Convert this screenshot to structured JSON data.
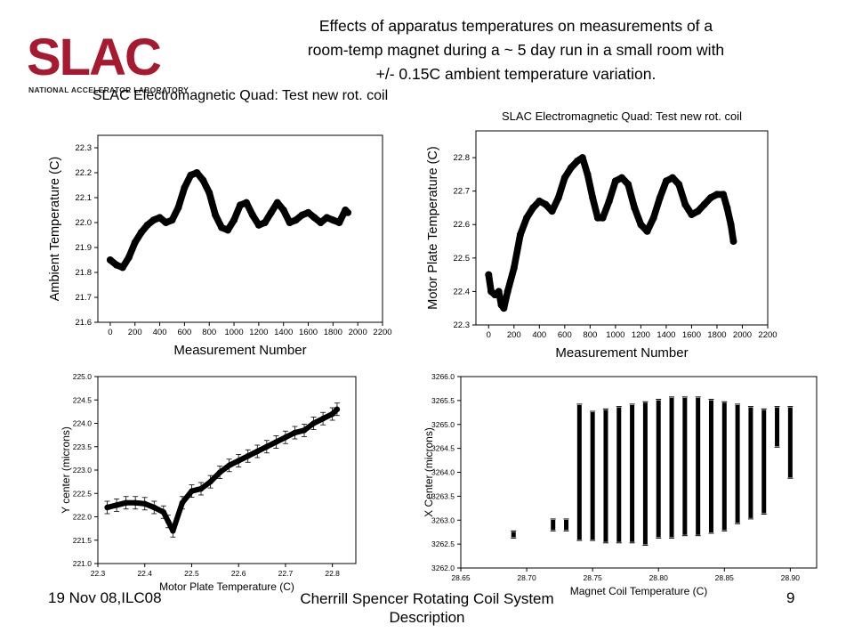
{
  "slide": {
    "title_lines": [
      "Effects of apparatus temperatures on measurements of a",
      "room-temp magnet during a ~ 5 day run in a small room with",
      "+/-  0.15C ambient temperature variation."
    ],
    "logo_text": "SLAC",
    "logo_subtext": "NATIONAL ACCELERATOR LABORATORY",
    "colors": {
      "logo": "#a6192e",
      "marker": "#000000"
    }
  },
  "footer": {
    "left": "19 Nov 08,ILC08",
    "center": "Cherrill Spencer Rotating Coil System Description",
    "right": "9"
  },
  "chart_data": [
    {
      "type": "scatter",
      "title": "SLAC  Electromagnetic Quad: Test new rot. coil",
      "xlabel": "Measurement Number",
      "ylabel": "Ambient Temperature (C)",
      "xlim": [
        -100,
        2200
      ],
      "ylim": [
        21.6,
        22.35
      ],
      "xticks": [
        0,
        200,
        400,
        600,
        800,
        1000,
        1200,
        1400,
        1600,
        1800,
        2000,
        2200
      ],
      "yticks": [
        21.6,
        21.7,
        21.8,
        21.9,
        22.0,
        22.1,
        22.2,
        22.3
      ],
      "tick_decimals": 1,
      "series": [
        {
          "x": [
            0,
            50,
            100,
            150,
            200,
            250,
            300,
            350,
            400,
            450,
            500,
            550,
            600,
            650,
            700,
            750,
            800,
            850,
            900,
            950,
            1000,
            1050,
            1100,
            1150,
            1200,
            1250,
            1300,
            1350,
            1400,
            1450,
            1500,
            1550,
            1600,
            1650,
            1700,
            1750,
            1800,
            1850,
            1900,
            1920
          ],
          "y": [
            21.85,
            21.83,
            21.82,
            21.86,
            21.92,
            21.96,
            21.99,
            22.01,
            22.02,
            22.0,
            22.01,
            22.06,
            22.14,
            22.19,
            22.2,
            22.17,
            22.12,
            22.03,
            21.98,
            21.97,
            22.01,
            22.07,
            22.08,
            22.03,
            21.99,
            22.0,
            22.04,
            22.08,
            22.05,
            22.0,
            22.01,
            22.03,
            22.04,
            22.02,
            22.0,
            22.02,
            22.01,
            22.0,
            22.05,
            22.04
          ]
        }
      ]
    },
    {
      "type": "scatter",
      "title": "SLAC  Electromagnetic Quad: Test new rot. coil",
      "xlabel": "Measurement Number",
      "ylabel": "Motor Plate Temperature (C)",
      "xlim": [
        -100,
        2200
      ],
      "ylim": [
        22.3,
        22.88
      ],
      "xticks": [
        0,
        200,
        400,
        600,
        800,
        1000,
        1200,
        1400,
        1600,
        1800,
        2000,
        2200
      ],
      "yticks": [
        22.3,
        22.4,
        22.5,
        22.6,
        22.7,
        22.8
      ],
      "tick_decimals": 1,
      "series": [
        {
          "x": [
            0,
            20,
            50,
            80,
            100,
            120,
            150,
            200,
            250,
            300,
            350,
            400,
            450,
            500,
            550,
            600,
            650,
            700,
            740,
            780,
            820,
            860,
            900,
            950,
            1000,
            1050,
            1100,
            1150,
            1200,
            1250,
            1300,
            1350,
            1400,
            1450,
            1500,
            1550,
            1600,
            1650,
            1700,
            1750,
            1800,
            1850,
            1880,
            1910,
            1930
          ],
          "y": [
            22.45,
            22.4,
            22.39,
            22.4,
            22.36,
            22.35,
            22.4,
            22.47,
            22.57,
            22.62,
            22.65,
            22.67,
            22.66,
            22.64,
            22.68,
            22.74,
            22.77,
            22.79,
            22.8,
            22.75,
            22.68,
            22.62,
            22.62,
            22.67,
            22.73,
            22.74,
            22.72,
            22.65,
            22.6,
            22.58,
            22.62,
            22.68,
            22.73,
            22.74,
            22.72,
            22.66,
            22.63,
            22.64,
            22.66,
            22.68,
            22.69,
            22.69,
            22.65,
            22.6,
            22.55
          ]
        }
      ]
    },
    {
      "type": "scatter",
      "title": "",
      "xlabel": "Motor Plate Temperature (C)",
      "ylabel": "Y center (microns)",
      "xlim": [
        22.3,
        22.85
      ],
      "ylim": [
        221.0,
        225.0
      ],
      "xticks": [
        22.3,
        22.4,
        22.5,
        22.6,
        22.7,
        22.8
      ],
      "yticks": [
        221.0,
        221.5,
        222.0,
        222.5,
        223.0,
        223.5,
        224.0,
        224.5,
        225.0
      ],
      "tick_decimals": 1,
      "error_bars": true,
      "series": [
        {
          "x": [
            22.32,
            22.34,
            22.36,
            22.38,
            22.4,
            22.42,
            22.44,
            22.45,
            22.46,
            22.48,
            22.5,
            22.52,
            22.54,
            22.56,
            22.58,
            22.6,
            22.62,
            22.64,
            22.66,
            22.68,
            22.7,
            22.72,
            22.74,
            22.76,
            22.78,
            22.8,
            22.81
          ],
          "y": [
            222.2,
            222.25,
            222.3,
            222.3,
            222.28,
            222.2,
            222.1,
            221.9,
            221.7,
            222.3,
            222.55,
            222.6,
            222.75,
            222.95,
            223.1,
            223.2,
            223.3,
            223.4,
            223.5,
            223.6,
            223.7,
            223.8,
            223.85,
            224.0,
            224.1,
            224.2,
            224.3
          ]
        }
      ]
    },
    {
      "type": "scatter",
      "title": "",
      "xlabel": "Magnet Coil Temperature (C)",
      "ylabel": "X Center (microns)",
      "xlim": [
        28.65,
        28.92
      ],
      "ylim": [
        3262.0,
        3266.0
      ],
      "xticks": [
        28.65,
        28.7,
        28.75,
        28.8,
        28.85,
        28.9
      ],
      "yticks": [
        3262.0,
        3262.5,
        3263.0,
        3263.5,
        3264.0,
        3264.5,
        3265.0,
        3265.5,
        3266.0
      ],
      "tick_decimals": 2,
      "y_tick_decimals": 1,
      "error_bars": true,
      "series": [
        {
          "x": [
            28.69,
            28.72,
            28.73,
            28.74,
            28.75,
            28.76,
            28.77,
            28.78,
            28.79,
            28.8,
            28.81,
            28.82,
            28.83,
            28.84,
            28.85,
            28.86,
            28.87,
            28.88,
            28.89,
            28.9
          ],
          "y_min": [
            3262.7,
            3262.85,
            3262.85,
            3262.65,
            3262.65,
            3262.6,
            3262.6,
            3262.6,
            3262.55,
            3262.7,
            3262.7,
            3262.75,
            3262.75,
            3262.8,
            3262.85,
            3263.0,
            3263.1,
            3263.2,
            3264.6,
            3263.95
          ],
          "y_max": [
            3262.7,
            3262.95,
            3262.95,
            3265.35,
            3265.2,
            3265.25,
            3265.3,
            3265.35,
            3265.4,
            3265.45,
            3265.5,
            3265.5,
            3265.5,
            3265.45,
            3265.4,
            3265.35,
            3265.3,
            3265.25,
            3265.3,
            3265.3
          ]
        }
      ]
    }
  ]
}
